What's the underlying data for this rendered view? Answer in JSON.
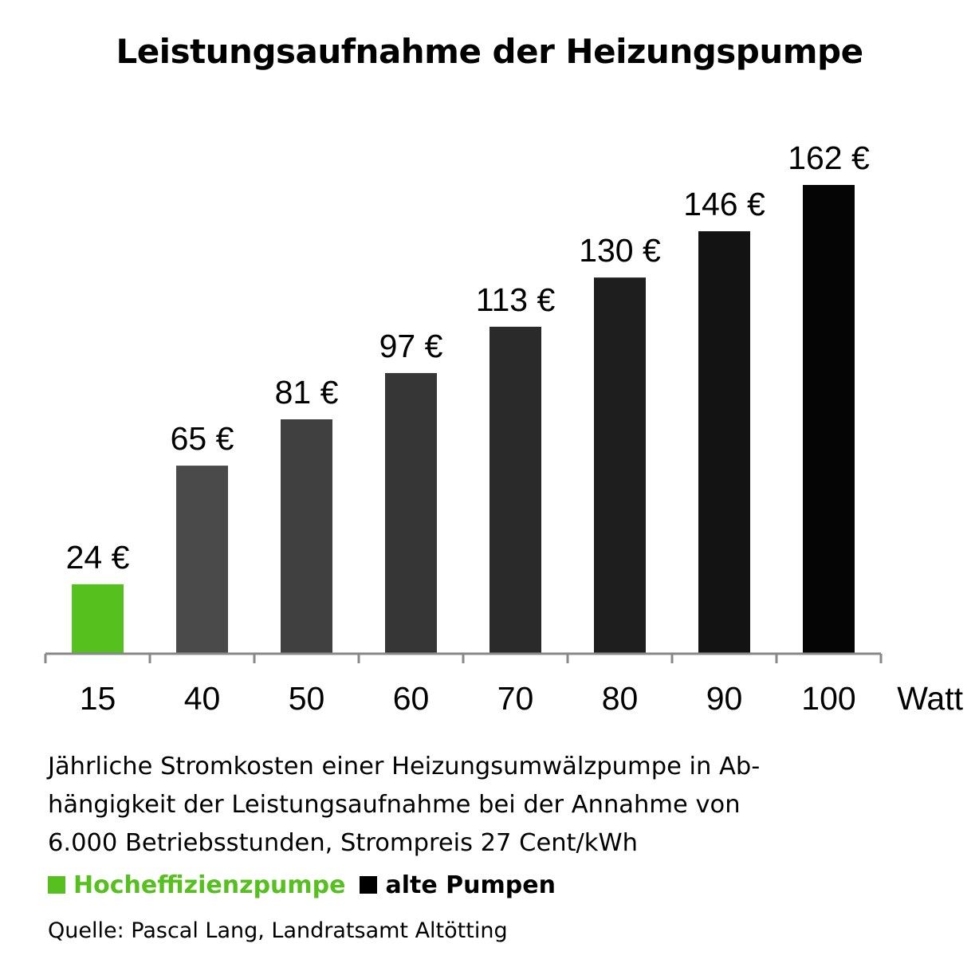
{
  "chart_data": {
    "type": "bar",
    "title": "Leistungsaufnahme der Heizungspumpe",
    "categories": [
      "15",
      "40",
      "50",
      "60",
      "70",
      "80",
      "90",
      "100"
    ],
    "x_unit_label": "Watt",
    "values": [
      24,
      65,
      81,
      97,
      113,
      130,
      146,
      162
    ],
    "value_labels": [
      "24 €",
      "65 €",
      "81 €",
      "97 €",
      "113 €",
      "130 €",
      "146 €",
      "162 €"
    ],
    "bar_colors": [
      "#55c01e",
      "#4a4a4a",
      "#404040",
      "#363636",
      "#2a2a2a",
      "#1e1e1e",
      "#131313",
      "#050505"
    ],
    "ylim": [
      0,
      162
    ],
    "grid": false,
    "legend": [
      {
        "label": "Hocheffizienzpumpe",
        "color": "#55c01e"
      },
      {
        "label": "alte Pumpen",
        "color": "#000000"
      }
    ],
    "legend_position": "bottom-left"
  },
  "caption": {
    "lines": [
      "Jährliche Stromkosten einer Heizungsumwälzpumpe in Ab-",
      "hängigkeit der Leistungsaufnahme bei der Annahme  von",
      "6.000 Betriebsstunden, Strompreis 27 Cent/kWh"
    ]
  },
  "source": "Quelle: Pascal Lang, Landratsamt Altötting",
  "colors": {
    "accent_green": "#55c01e",
    "axis": "#888888"
  }
}
